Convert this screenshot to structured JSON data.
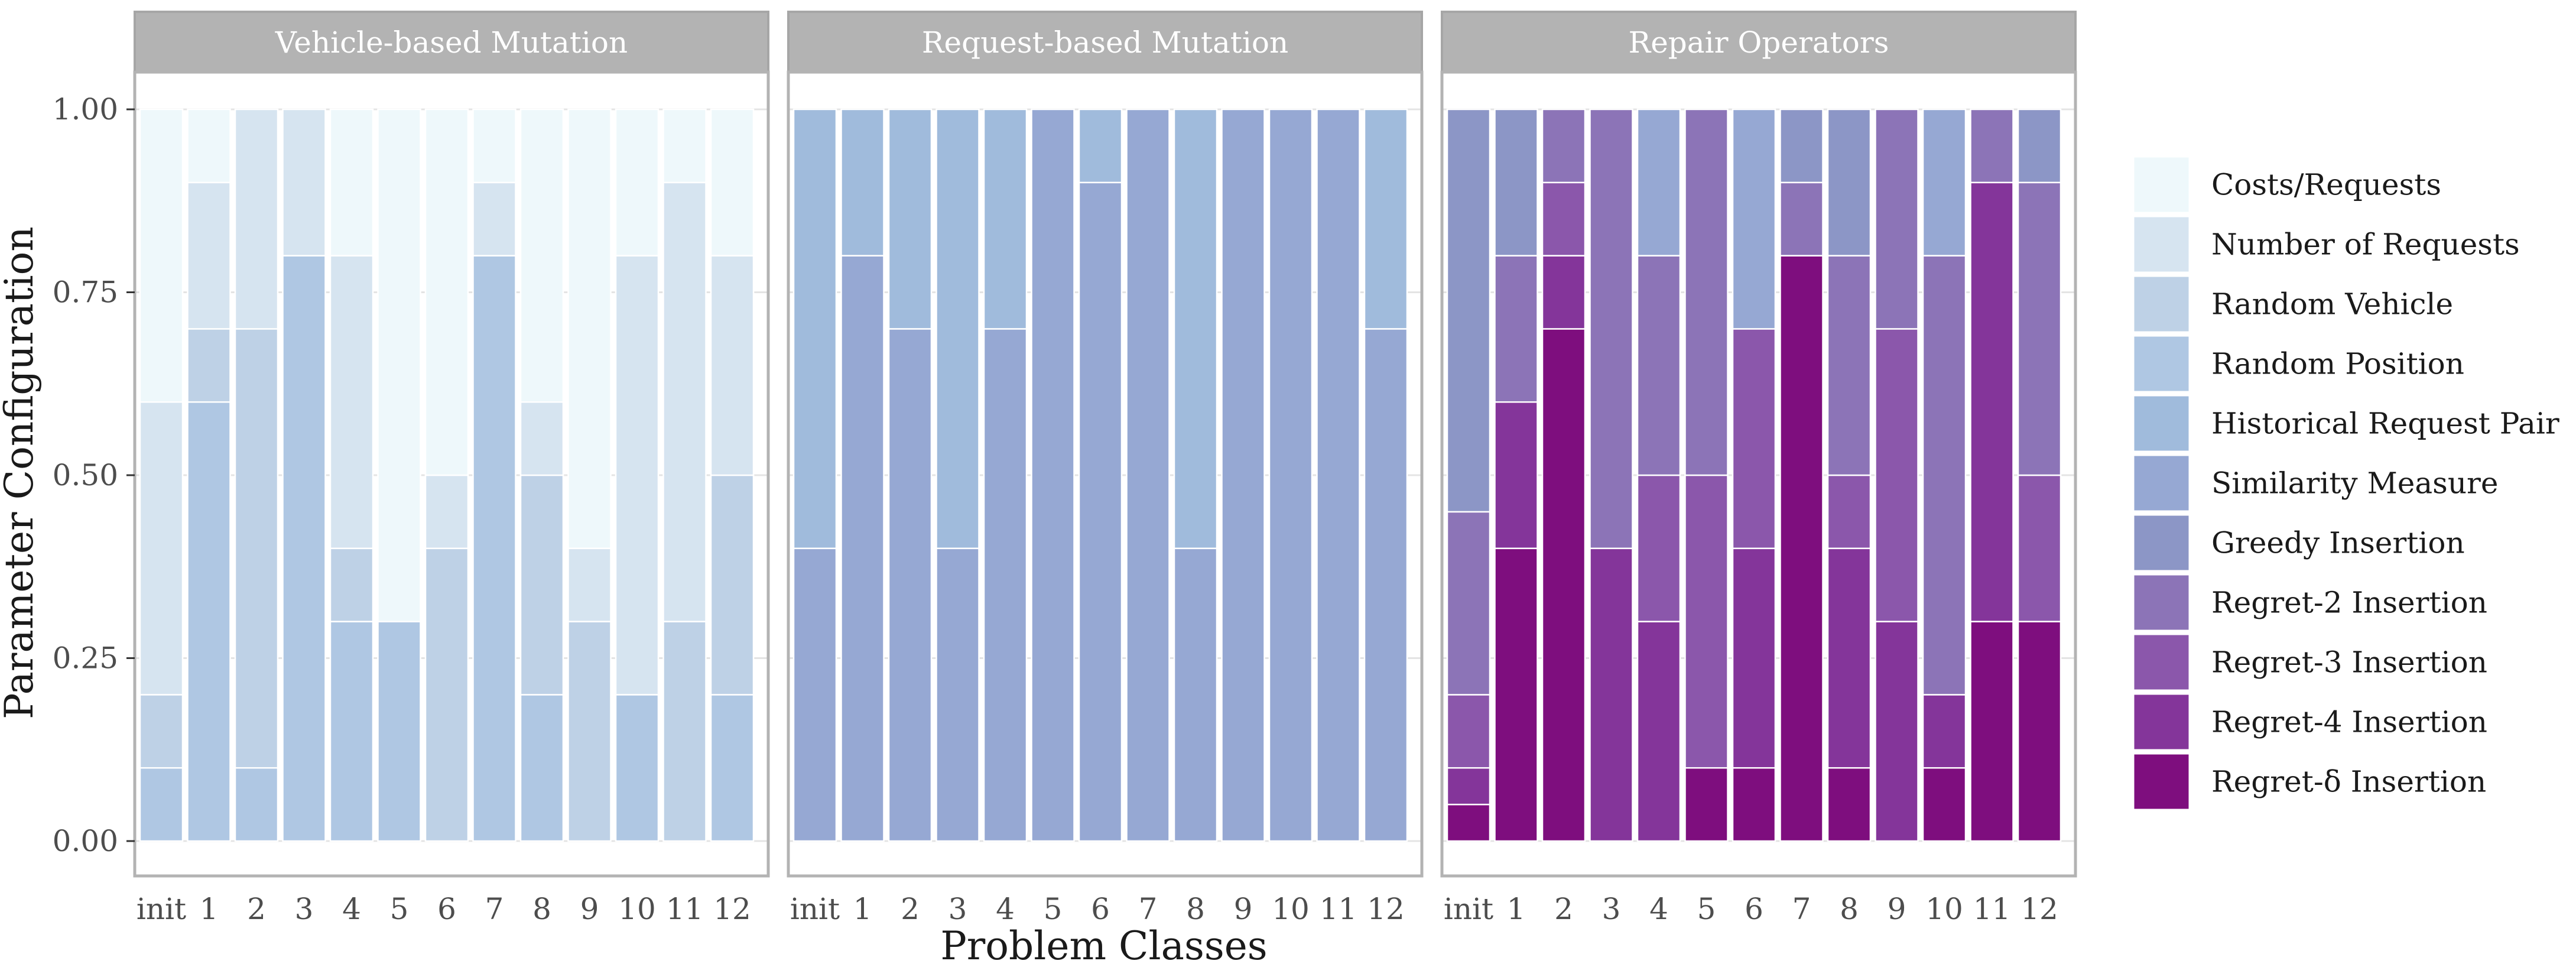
{
  "chart_data": {
    "type": "stacked-bar",
    "ylabel": "Parameter Configuration",
    "xlabel": "Problem Classes",
    "ylim": [
      0,
      1
    ],
    "yticks": [
      "0.00",
      "0.25",
      "0.50",
      "0.75",
      "1.00"
    ],
    "ytick_values": [
      0,
      0.25,
      0.5,
      0.75,
      1.0
    ],
    "categories": [
      "init",
      "1",
      "2",
      "3",
      "4",
      "5",
      "6",
      "7",
      "8",
      "9",
      "10",
      "11",
      "12"
    ],
    "legend": [
      {
        "label": "Costs/Requests",
        "color": "#EEF8FB"
      },
      {
        "label": "Number of Requests",
        "color": "#D6E4F0"
      },
      {
        "label": "Random Vehicle",
        "color": "#BED1E6"
      },
      {
        "label": "Random Position",
        "color": "#AFC7E3"
      },
      {
        "label": "Historical Request Pair",
        "color": "#A0BBDC"
      },
      {
        "label": "Similarity Measure",
        "color": "#96A8D3"
      },
      {
        "label": "Greedy Insertion",
        "color": "#8C96C6"
      },
      {
        "label": "Regret-2 Insertion",
        "color": "#8C74B7"
      },
      {
        "label": "Regret-3 Insertion",
        "color": "#8B57AB"
      },
      {
        "label": "Regret-4 Insertion",
        "color": "#84359A"
      },
      {
        "label": "Regret-δ Insertion",
        "color": "#7E0E7E"
      }
    ],
    "panels": [
      {
        "title": "Vehicle-based Mutation",
        "series": [
          {
            "name": "Random Position",
            "values": [
              0.1,
              0.6,
              0.1,
              0.8,
              0.3,
              0.3,
              0.0,
              0.8,
              0.2,
              0.0,
              0.2,
              0.0,
              0.2
            ]
          },
          {
            "name": "Random Vehicle",
            "values": [
              0.1,
              0.1,
              0.6,
              0.0,
              0.1,
              0.0,
              0.4,
              0.0,
              0.3,
              0.3,
              0.0,
              0.3,
              0.3
            ]
          },
          {
            "name": "Number of Requests",
            "values": [
              0.4,
              0.2,
              0.3,
              0.2,
              0.4,
              0.0,
              0.1,
              0.1,
              0.1,
              0.1,
              0.6,
              0.6,
              0.3
            ]
          },
          {
            "name": "Costs/Requests",
            "values": [
              0.4,
              0.1,
              0.0,
              0.0,
              0.2,
              0.7,
              0.5,
              0.1,
              0.4,
              0.6,
              0.2,
              0.1,
              0.2
            ]
          }
        ]
      },
      {
        "title": "Request-based Mutation",
        "series": [
          {
            "name": "Similarity Measure",
            "values": [
              0.4,
              0.8,
              0.7,
              0.4,
              0.7,
              1.0,
              0.9,
              1.0,
              0.4,
              1.0,
              1.0,
              1.0,
              0.7
            ]
          },
          {
            "name": "Historical Request Pair",
            "values": [
              0.6,
              0.2,
              0.3,
              0.6,
              0.3,
              0.0,
              0.1,
              0.0,
              0.6,
              0.0,
              0.0,
              0.0,
              0.3
            ]
          }
        ]
      },
      {
        "title": "Repair Operators",
        "series": [
          {
            "name": "Regret-δ Insertion",
            "values": [
              0.05,
              0.4,
              0.7,
              0.0,
              0.0,
              0.1,
              0.1,
              0.8,
              0.1,
              0.0,
              0.1,
              0.3,
              0.3
            ]
          },
          {
            "name": "Regret-4 Insertion",
            "values": [
              0.05,
              0.2,
              0.1,
              0.4,
              0.3,
              0.0,
              0.3,
              0.0,
              0.3,
              0.3,
              0.1,
              0.6,
              0.0
            ]
          },
          {
            "name": "Regret-3 Insertion",
            "values": [
              0.1,
              0.0,
              0.1,
              0.0,
              0.2,
              0.4,
              0.3,
              0.0,
              0.1,
              0.4,
              0.0,
              0.0,
              0.2
            ]
          },
          {
            "name": "Regret-2 Insertion",
            "values": [
              0.25,
              0.2,
              0.1,
              0.6,
              0.3,
              0.5,
              0.0,
              0.1,
              0.3,
              0.3,
              0.6,
              0.1,
              0.4
            ]
          },
          {
            "name": "Greedy Insertion",
            "values": [
              0.55,
              0.2,
              0.0,
              0.0,
              0.0,
              0.0,
              0.0,
              0.1,
              0.2,
              0.0,
              0.0,
              0.0,
              0.1
            ]
          },
          {
            "name": "Similarity Measure",
            "values": [
              0.0,
              0.0,
              0.0,
              0.0,
              0.2,
              0.0,
              0.3,
              0.0,
              0.0,
              0.0,
              0.2,
              0.0,
              0.0
            ]
          }
        ]
      }
    ]
  }
}
